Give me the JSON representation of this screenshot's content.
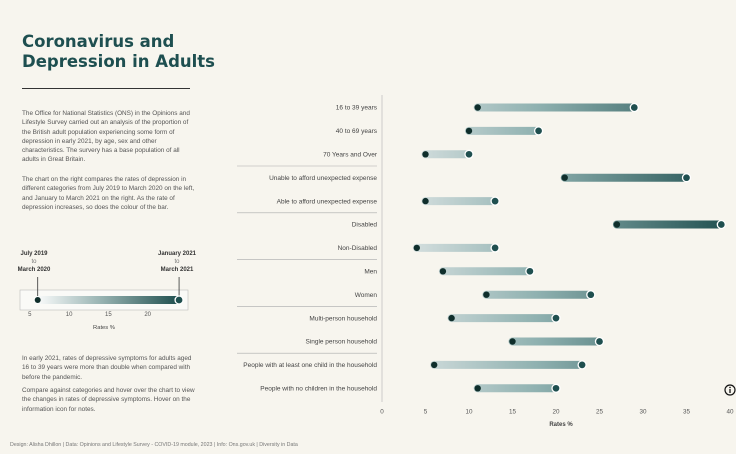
{
  "header": {
    "title": "Coronavirus and Depression in Adults"
  },
  "intro": {
    "paragraph1": "The Office for National Statistics (ONS) in the Opinions and Lifestyle Survey carried out an analysis of the proportion of the British adult population experiencing some form of depression in early 2021, by age, sex and other characteristics. The survery has a base population of all adults in Great Britain.",
    "paragraph2": "The chart on the right compares the rates of depression in different categories from July 2019 to March 2020 on the left, and January to March 2021 on the right. As the rate of depression increases, so does the colour of the bar."
  },
  "legend": {
    "start_line1": "July 2019",
    "start_to": "to",
    "start_line2": "March 2020",
    "end_line1": "January 2021",
    "end_to": "to",
    "end_line2": "March 2021",
    "ticks": [
      5,
      10,
      15,
      20
    ],
    "axis_label": "Rates %",
    "start_value": 6,
    "end_value": 24
  },
  "findings": {
    "paragraph1": "In early 2021, rates of depressive symptoms for adults aged 16 to 39 years were more than double when compared with before the pandemic.",
    "paragraph2": "Compare against categories and hover over the chart to view the changes in rates of depressive symptoms. Hover on the information icon for notes."
  },
  "footer": {
    "credit": "Design: Alisha Dhillon | Data: Opinions and Lifestyle Survey - COVID-19 module, 2023 | Info: Ons.gov.uk | Diversity in Data"
  },
  "colors": {
    "dark": "#1f4f4f",
    "light": "#e6eaea",
    "dot": "#0f2e2b",
    "title": "#1e4f50"
  },
  "icons": {
    "info": "info-icon"
  },
  "chart_data": {
    "type": "dumbbell",
    "xlabel": "Rates %",
    "xlim": [
      0,
      40
    ],
    "xticks": [
      0,
      5,
      10,
      15,
      20,
      25,
      30,
      35,
      40
    ],
    "series": [
      {
        "name": "July 2019 to March 2020"
      },
      {
        "name": "January 2021 to March 2021"
      }
    ],
    "groups": [
      {
        "rows": [
          {
            "category": "16 to 39 years",
            "start": 11,
            "end": 29
          },
          {
            "category": "40 to 69 years",
            "start": 10,
            "end": 18
          },
          {
            "category": "70 Years and Over",
            "start": 5,
            "end": 10
          }
        ]
      },
      {
        "rows": [
          {
            "category": "Unable to afford unexpected expense",
            "start": 21,
            "end": 35
          },
          {
            "category": "Able to afford unexpected expense",
            "start": 5,
            "end": 13
          }
        ]
      },
      {
        "rows": [
          {
            "category": "Disabled",
            "start": 27,
            "end": 39
          },
          {
            "category": "Non-Disabled",
            "start": 4,
            "end": 13
          }
        ]
      },
      {
        "rows": [
          {
            "category": "Men",
            "start": 7,
            "end": 17
          },
          {
            "category": "Women",
            "start": 12,
            "end": 24
          }
        ]
      },
      {
        "rows": [
          {
            "category": "Multi-person household",
            "start": 8,
            "end": 20
          },
          {
            "category": "Single person household",
            "start": 15,
            "end": 25
          }
        ]
      },
      {
        "rows": [
          {
            "category": "People with at least one child in the household",
            "start": 6,
            "end": 23
          },
          {
            "category": "People with no children in the household",
            "start": 11,
            "end": 20
          }
        ]
      }
    ]
  }
}
